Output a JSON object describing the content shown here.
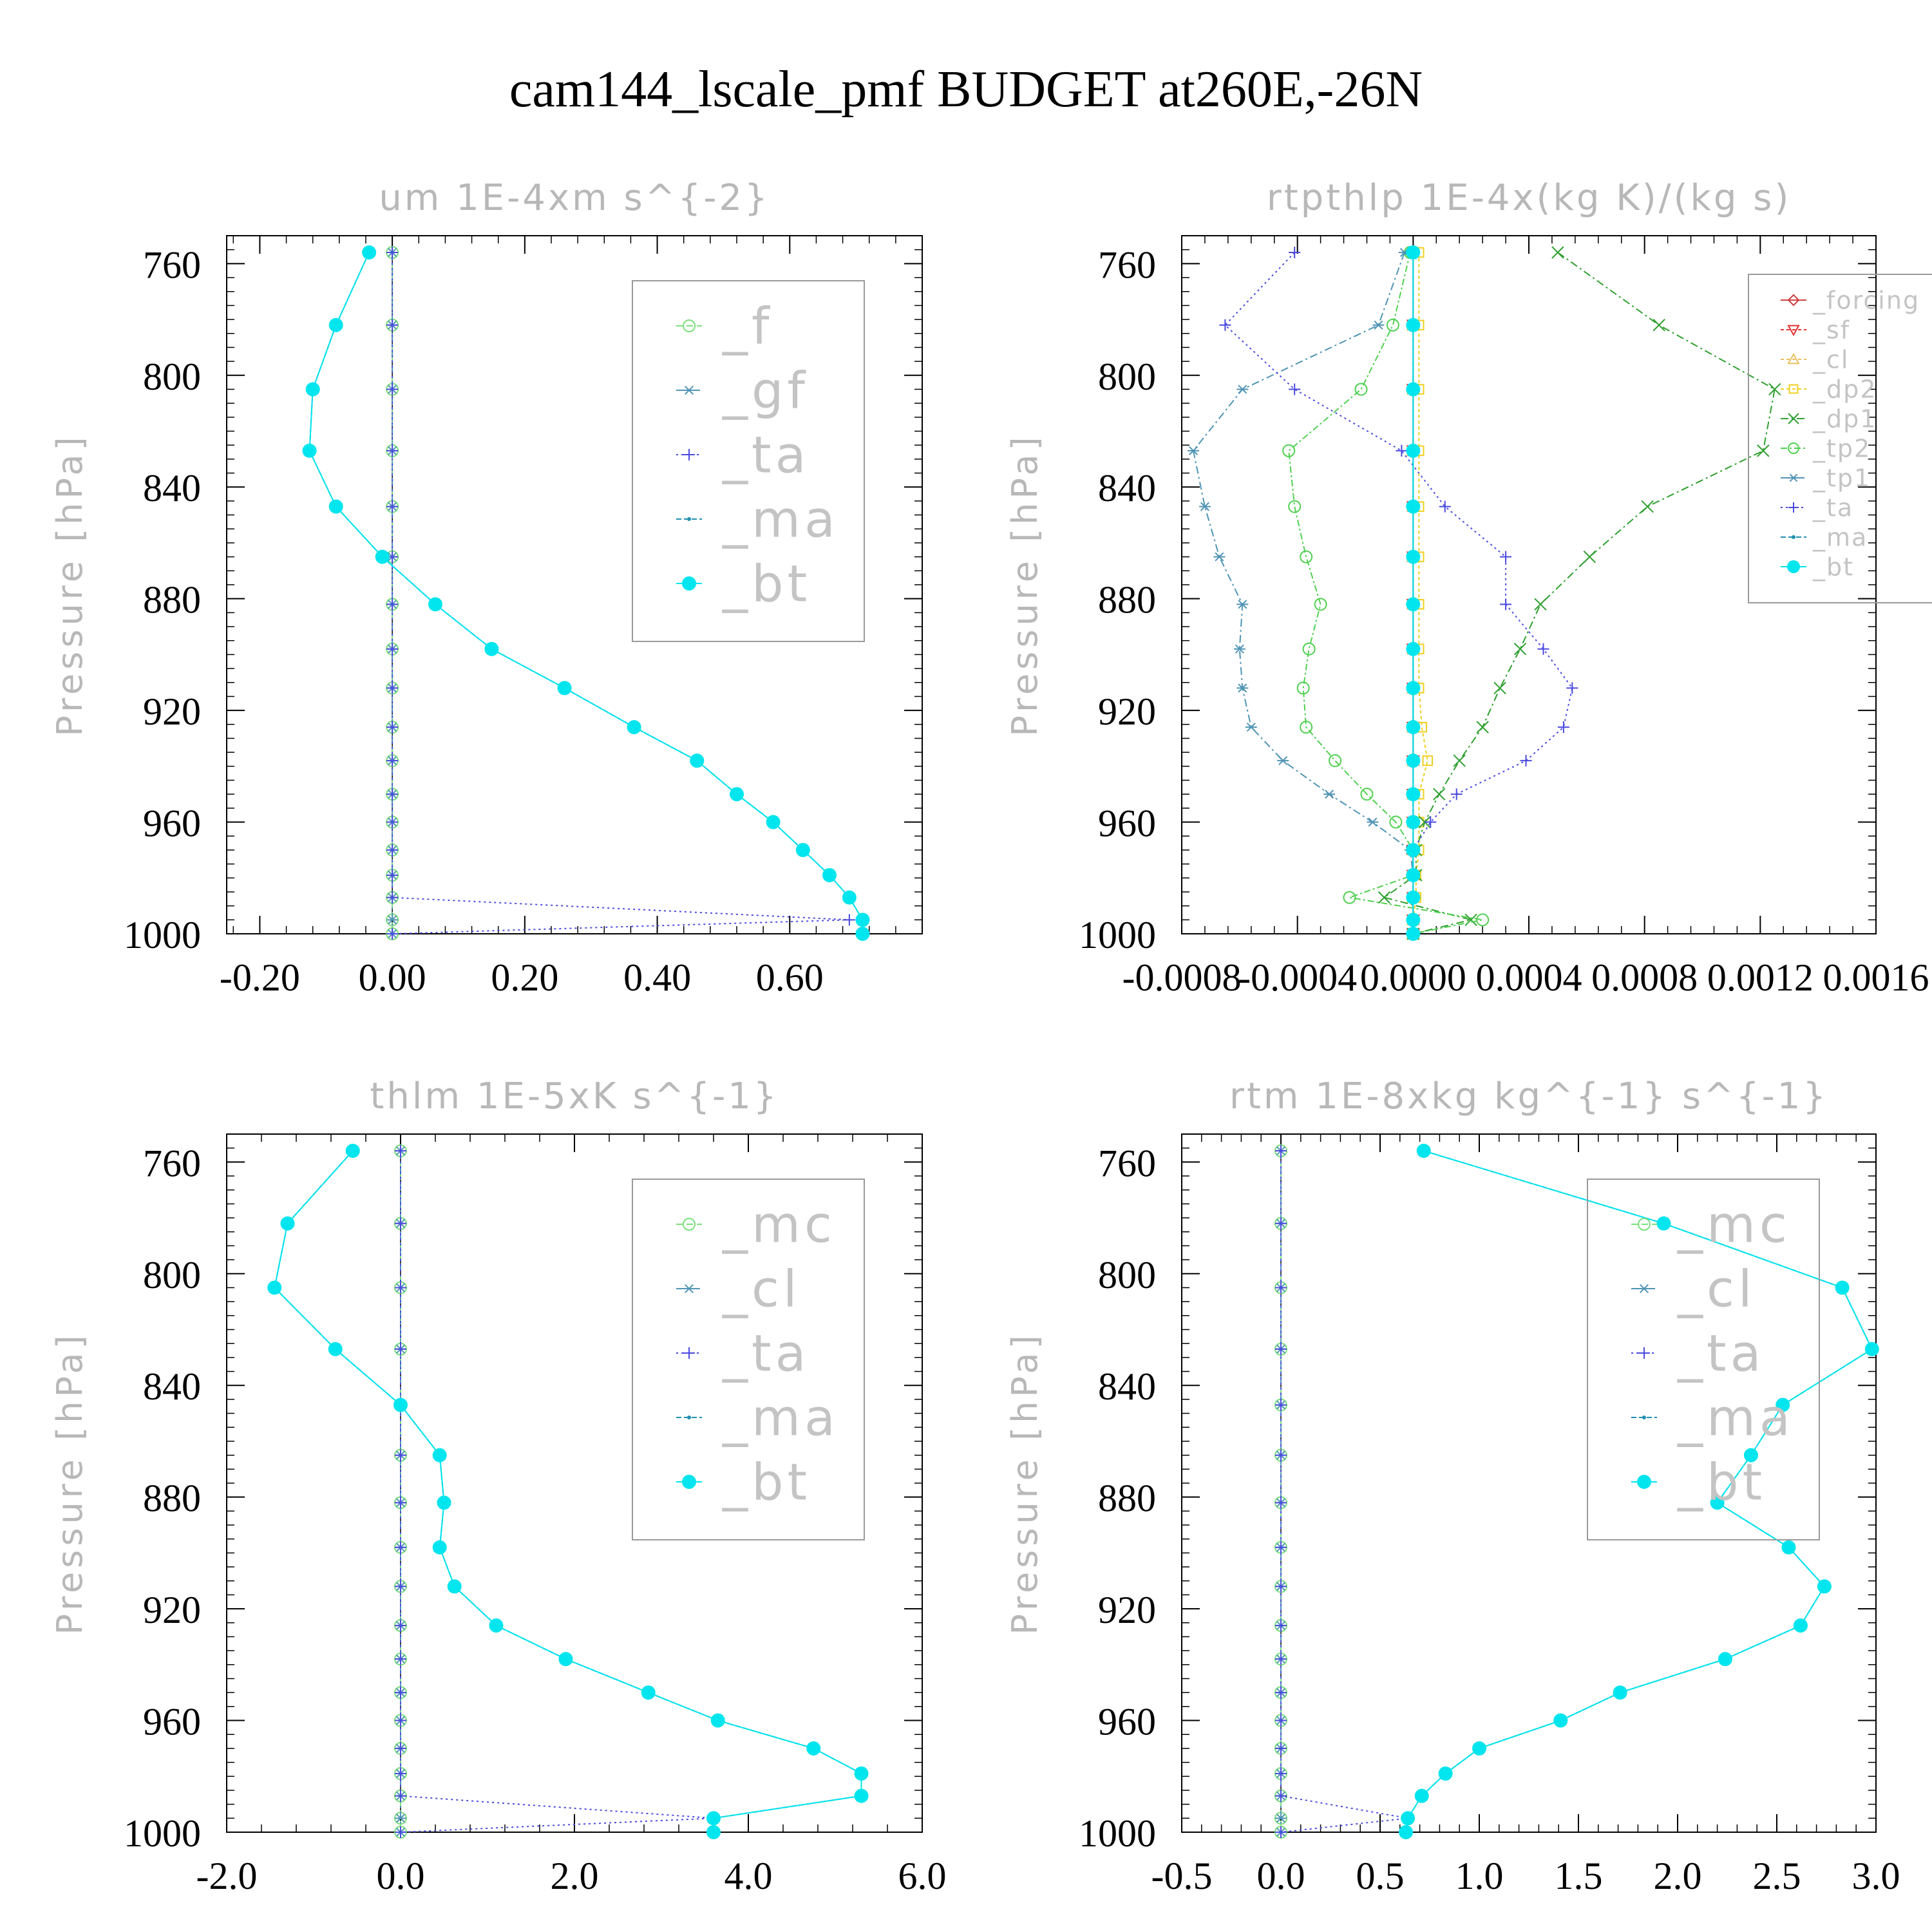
{
  "figure": {
    "title": "cam144_lscale_pmf  BUDGET at260E,-26N"
  },
  "chart_data": [
    {
      "type": "line",
      "title": "um   1E-4xm s^{-2}",
      "ylabel": "Pressure [hPa]",
      "ylim": [
        750,
        1000
      ],
      "yticks": [
        760,
        800,
        840,
        880,
        920,
        960,
        1000
      ],
      "xlim": [
        -0.25,
        0.8
      ],
      "xticks": [
        -0.2,
        0.0,
        0.2,
        0.4,
        0.6
      ],
      "xtick_labels": [
        "-0.20",
        "0.00",
        "0.20",
        "0.40",
        "0.60"
      ],
      "legend_position": "top-right",
      "legend_scale": "large",
      "levels": [
        756,
        782,
        805,
        827,
        847,
        865,
        882,
        898,
        912,
        926,
        938,
        950,
        960,
        970,
        979,
        987,
        995,
        1000
      ],
      "series": [
        {
          "name": "_f",
          "color": "#7be07b",
          "marker": "circle-open",
          "dash": "10,6",
          "values": [
            0,
            0,
            0,
            0,
            0,
            0,
            0,
            0,
            0,
            0,
            0,
            0,
            0,
            0,
            0,
            0,
            0,
            0
          ]
        },
        {
          "name": "_gf",
          "color": "#4f94b5",
          "marker": "asterisk",
          "dash": "12,5,3,5",
          "values": [
            0,
            0,
            0,
            0,
            0,
            0,
            0,
            0,
            0,
            0,
            0,
            0,
            0,
            0,
            0,
            0,
            0,
            0
          ]
        },
        {
          "name": "_ta",
          "color": "#4a4ae0",
          "marker": "plus",
          "dash": "3,5",
          "values": [
            0,
            0,
            0,
            0,
            0,
            0,
            0,
            0,
            0,
            0,
            0,
            0,
            0,
            0,
            0,
            0,
            0.69,
            0
          ]
        },
        {
          "name": "_ma",
          "color": "#1f8fb0",
          "marker": "dot",
          "dash": "8,4",
          "values": [
            -0.035,
            -0.085,
            -0.12,
            -0.125,
            -0.085,
            -0.015,
            0.065,
            0.15,
            0.26,
            0.365,
            0.46,
            0.52,
            0.575,
            0.62,
            0.66,
            0.69,
            0.71,
            0.71
          ]
        },
        {
          "name": "_bt",
          "color": "#00e5ee",
          "marker": "filled",
          "dash": "",
          "values": [
            -0.035,
            -0.085,
            -0.12,
            -0.125,
            -0.085,
            -0.015,
            0.065,
            0.15,
            0.26,
            0.365,
            0.46,
            0.52,
            0.575,
            0.62,
            0.66,
            0.69,
            0.71,
            0.71
          ]
        }
      ]
    },
    {
      "type": "line",
      "title": "rtpthlp   1E-4x(kg K)/(kg s)",
      "ylabel": "Pressure [hPa]",
      "ylim": [
        750,
        1000
      ],
      "yticks": [
        760,
        800,
        840,
        880,
        920,
        960,
        1000
      ],
      "xlim": [
        -0.0008,
        0.0016
      ],
      "xticks": [
        -0.0008,
        -0.0004,
        0.0,
        0.0004,
        0.0008,
        0.0012,
        0.0016
      ],
      "xtick_labels": [
        "-0.0008",
        "-0.0004",
        "0.0000",
        "0.0004",
        "0.0008",
        "0.0012",
        "0.0016"
      ],
      "legend_position": "top-right",
      "legend_scale": "small",
      "levels": [
        756,
        782,
        805,
        827,
        847,
        865,
        882,
        898,
        912,
        926,
        938,
        950,
        960,
        970,
        979,
        987,
        995,
        1000
      ],
      "series": [
        {
          "name": "_forcing",
          "color": "#d04040",
          "marker": "diamond-open",
          "dash": "",
          "values": [
            0,
            0,
            0,
            0,
            0,
            0,
            0,
            0,
            0,
            0,
            0,
            0,
            0,
            0,
            0,
            0,
            0,
            0
          ]
        },
        {
          "name": "_sf",
          "color": "#e03030",
          "marker": "triangle-down",
          "dash": "5,4",
          "values": [
            0,
            0,
            0,
            0,
            0,
            0,
            0,
            0,
            0,
            0,
            0,
            0,
            0,
            0,
            0,
            0,
            0,
            0
          ]
        },
        {
          "name": "_cl",
          "color": "#e8c060",
          "marker": "triangle-up",
          "dash": "5,4",
          "values": [
            0,
            0,
            0,
            0,
            0,
            0,
            0,
            0,
            0,
            0,
            0,
            0,
            0,
            0,
            0,
            0,
            0,
            0
          ]
        },
        {
          "name": "_dp2",
          "color": "#f0d020",
          "marker": "square-open",
          "dash": "5,4",
          "values": [
            2e-05,
            2e-05,
            2e-05,
            2e-05,
            2e-05,
            2e-05,
            2e-05,
            2e-05,
            2e-05,
            3e-05,
            5e-05,
            2e-05,
            2e-05,
            2e-05,
            1e-05,
            1e-05,
            0,
            0
          ]
        },
        {
          "name": "_dp1",
          "color": "#30a030",
          "marker": "cross",
          "dash": "12,5,3,5",
          "values": [
            0.0005,
            0.00085,
            0.00125,
            0.00121,
            0.00081,
            0.00061,
            0.00044,
            0.00037,
            0.0003,
            0.00024,
            0.00016,
            9e-05,
            4e-05,
            1e-05,
            1e-05,
            -0.0001,
            0.0002,
            0
          ]
        },
        {
          "name": "_tp2",
          "color": "#50d050",
          "marker": "circle-open",
          "dash": "10,4,3,4",
          "values": [
            -1e-05,
            -7e-05,
            -0.00018,
            -0.00043,
            -0.00041,
            -0.00037,
            -0.00032,
            -0.00036,
            -0.00038,
            -0.00037,
            -0.00027,
            -0.00016,
            -6e-05,
            0,
            0,
            -0.00022,
            0.00024,
            0
          ]
        },
        {
          "name": "_tp1",
          "color": "#4f94b5",
          "marker": "asterisk",
          "dash": "12,5,3,5",
          "values": [
            -3e-05,
            -0.00012,
            -0.00059,
            -0.00076,
            -0.00072,
            -0.00067,
            -0.00059,
            -0.0006,
            -0.00059,
            -0.00056,
            -0.00045,
            -0.00029,
            -0.00014,
            -1e-05,
            0,
            0,
            0,
            0
          ]
        },
        {
          "name": "_ta",
          "color": "#4a4ae0",
          "marker": "plus",
          "dash": "3,5",
          "values": [
            -0.00041,
            -0.00065,
            -0.00041,
            -4e-05,
            0.00011,
            0.00032,
            0.00032,
            0.00045,
            0.00055,
            0.00052,
            0.00039,
            0.00015,
            6e-05,
            0,
            0,
            0,
            0,
            0
          ]
        },
        {
          "name": "_ma",
          "color": "#1f8fb0",
          "marker": "dot",
          "dash": "8,4",
          "values": [
            0,
            0,
            0,
            0,
            0,
            0,
            0,
            0,
            0,
            0,
            0,
            0,
            0,
            0,
            0,
            0,
            0,
            0
          ]
        },
        {
          "name": "_bt",
          "color": "#00e5ee",
          "marker": "filled",
          "dash": "",
          "values": [
            0,
            0,
            0,
            0,
            0,
            0,
            0,
            0,
            0,
            0,
            0,
            0,
            0,
            0,
            0,
            0,
            0,
            0
          ]
        }
      ]
    },
    {
      "type": "line",
      "title": "thlm   1E-5xK s^{-1}",
      "ylabel": "Pressure [hPa]",
      "ylim": [
        750,
        1000
      ],
      "yticks": [
        760,
        800,
        840,
        880,
        920,
        960,
        1000
      ],
      "xlim": [
        -2.0,
        6.0
      ],
      "xticks": [
        -2.0,
        0.0,
        2.0,
        4.0,
        6.0
      ],
      "xtick_labels": [
        "-2.0",
        "0.0",
        "2.0",
        "4.0",
        "6.0"
      ],
      "legend_position": "top-right",
      "legend_scale": "large",
      "levels": [
        756,
        782,
        805,
        827,
        847,
        865,
        882,
        898,
        912,
        926,
        938,
        950,
        960,
        970,
        979,
        987,
        995,
        1000
      ],
      "series": [
        {
          "name": "_mc",
          "color": "#7be07b",
          "marker": "circle-open",
          "dash": "10,6",
          "values": [
            0,
            0,
            0,
            0,
            0,
            0,
            0,
            0,
            0,
            0,
            0,
            0,
            0,
            0,
            0,
            0,
            0,
            0
          ]
        },
        {
          "name": "_cl",
          "color": "#4f94b5",
          "marker": "asterisk",
          "dash": "12,5,3,5",
          "values": [
            0,
            0,
            0,
            0,
            0,
            0,
            0,
            0,
            0,
            0,
            0,
            0,
            0,
            0,
            0,
            0,
            0,
            0
          ]
        },
        {
          "name": "_ta",
          "color": "#4a4ae0",
          "marker": "plus",
          "dash": "3,5",
          "values": [
            0,
            0,
            0,
            0,
            0,
            0,
            0,
            0,
            0,
            0,
            0,
            0,
            0,
            0,
            0,
            0,
            3.6,
            0
          ]
        },
        {
          "name": "_ma",
          "color": "#1f8fb0",
          "marker": "dot",
          "dash": "8,4",
          "values": [
            -0.55,
            -1.3,
            -1.45,
            -0.75,
            0,
            0.45,
            0.5,
            0.45,
            0.62,
            1.1,
            1.9,
            2.85,
            3.65,
            4.75,
            5.3,
            5.3,
            3.6,
            3.6
          ]
        },
        {
          "name": "_bt",
          "color": "#00e5ee",
          "marker": "filled",
          "dash": "",
          "values": [
            -0.55,
            -1.3,
            -1.45,
            -0.75,
            0,
            0.45,
            0.5,
            0.45,
            0.62,
            1.1,
            1.9,
            2.85,
            3.65,
            4.75,
            5.3,
            5.3,
            3.6,
            3.6
          ]
        }
      ]
    },
    {
      "type": "line",
      "title": "rtm   1E-8xkg kg^{-1} s^{-1}",
      "ylabel": "Pressure [hPa]",
      "ylim": [
        750,
        1000
      ],
      "yticks": [
        760,
        800,
        840,
        880,
        920,
        960,
        1000
      ],
      "xlim": [
        -0.5,
        3.0
      ],
      "xticks": [
        -0.5,
        0.0,
        0.5,
        1.0,
        1.5,
        2.0,
        2.5,
        3.0
      ],
      "xtick_labels": [
        "-0.5",
        "0.0",
        "0.5",
        "1.0",
        "1.5",
        "2.0",
        "2.5",
        "3.0"
      ],
      "legend_position": "top-right",
      "legend_scale": "large",
      "levels": [
        756,
        782,
        805,
        827,
        847,
        865,
        882,
        898,
        912,
        926,
        938,
        950,
        960,
        970,
        979,
        987,
        995,
        1000
      ],
      "series": [
        {
          "name": "_mc",
          "color": "#7be07b",
          "marker": "circle-open",
          "dash": "10,6",
          "values": [
            0,
            0,
            0,
            0,
            0,
            0,
            0,
            0,
            0,
            0,
            0,
            0,
            0,
            0,
            0,
            0,
            0,
            0
          ]
        },
        {
          "name": "_cl",
          "color": "#4f94b5",
          "marker": "asterisk",
          "dash": "12,5,3,5",
          "values": [
            0,
            0,
            0,
            0,
            0,
            0,
            0,
            0,
            0,
            0,
            0,
            0,
            0,
            0,
            0,
            0,
            0,
            0
          ]
        },
        {
          "name": "_ta",
          "color": "#4a4ae0",
          "marker": "plus",
          "dash": "3,5",
          "values": [
            0,
            0,
            0,
            0,
            0,
            0,
            0,
            0,
            0,
            0,
            0,
            0,
            0,
            0,
            0,
            0,
            0.64,
            0
          ]
        },
        {
          "name": "_ma",
          "color": "#1f8fb0",
          "marker": "dot",
          "dash": "8,4",
          "values": [
            0.72,
            1.93,
            2.83,
            2.98,
            2.53,
            2.37,
            2.2,
            2.56,
            2.74,
            2.62,
            2.24,
            1.71,
            1.41,
            1.0,
            0.83,
            0.71,
            0.64,
            0.63
          ]
        },
        {
          "name": "_bt",
          "color": "#00e5ee",
          "marker": "filled",
          "dash": "",
          "values": [
            0.72,
            1.93,
            2.83,
            2.98,
            2.53,
            2.37,
            2.2,
            2.56,
            2.74,
            2.62,
            2.24,
            1.71,
            1.41,
            1.0,
            0.83,
            0.71,
            0.64,
            0.63
          ]
        }
      ]
    }
  ]
}
